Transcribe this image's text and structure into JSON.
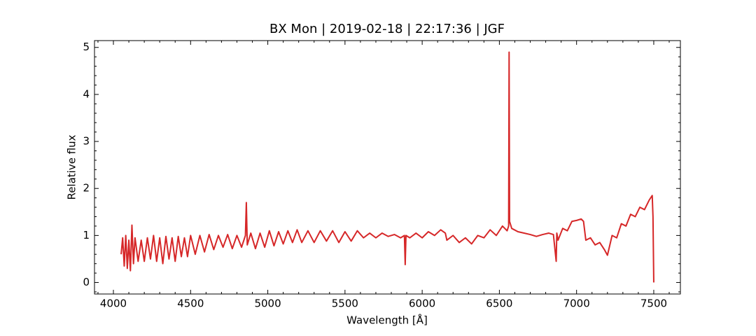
{
  "chart_data": {
    "type": "line",
    "title": "BX Mon | 2019-02-18 | 22:17:36 | JGF",
    "x_label": "Wavelength [Å]",
    "y_label": "Relative flux",
    "xlim": [
      3877.5,
      7672.5
    ],
    "ylim": [
      -0.245,
      5.145
    ],
    "xticks": [
      4000,
      4500,
      5000,
      5500,
      6000,
      6500,
      7000,
      7500
    ],
    "yticks": [
      0,
      1,
      2,
      3,
      4,
      5
    ],
    "xminorticks": [
      3900,
      4100,
      4200,
      4300,
      4400,
      4600,
      4700,
      4800,
      4900,
      5100,
      5200,
      5300,
      5400,
      5600,
      5700,
      5800,
      5900,
      6100,
      6200,
      6300,
      6400,
      6600,
      6700,
      6800,
      6900,
      7100,
      7200,
      7300,
      7400,
      7600
    ],
    "yminorticks": [
      -0.2,
      0.2,
      0.4,
      0.6,
      0.8,
      1.2,
      1.4,
      1.6,
      1.8,
      2.2,
      2.4,
      2.6,
      2.8,
      3.2,
      3.4,
      3.6,
      3.8,
      4.2,
      4.4,
      4.6,
      4.8
    ],
    "grid": false,
    "x": [
      4050,
      4060,
      4070,
      4080,
      4090,
      4100,
      4110,
      4120,
      4130,
      4140,
      4160,
      4180,
      4200,
      4220,
      4240,
      4260,
      4280,
      4300,
      4320,
      4340,
      4360,
      4380,
      4400,
      4420,
      4440,
      4460,
      4480,
      4500,
      4530,
      4560,
      4590,
      4620,
      4650,
      4680,
      4710,
      4740,
      4770,
      4800,
      4830,
      4855,
      4861,
      4867,
      4890,
      4920,
      4950,
      4980,
      5010,
      5040,
      5070,
      5100,
      5130,
      5160,
      5190,
      5220,
      5260,
      5300,
      5340,
      5380,
      5420,
      5460,
      5500,
      5540,
      5580,
      5620,
      5660,
      5700,
      5740,
      5780,
      5820,
      5860,
      5885,
      5890,
      5895,
      5920,
      5960,
      6000,
      6040,
      6080,
      6120,
      6150,
      6160,
      6200,
      6240,
      6280,
      6320,
      6360,
      6400,
      6440,
      6480,
      6520,
      6550,
      6560,
      6563,
      6566,
      6580,
      6620,
      6660,
      6700,
      6740,
      6780,
      6820,
      6850,
      6868,
      6872,
      6880,
      6910,
      6940,
      6970,
      7000,
      7030,
      7045,
      7060,
      7090,
      7120,
      7150,
      7180,
      7200,
      7230,
      7260,
      7290,
      7320,
      7350,
      7380,
      7410,
      7440,
      7470,
      7490,
      7495,
      7500
    ],
    "series": [
      {
        "color": "#d62728",
        "values": [
          0.6,
          0.95,
          0.35,
          1.0,
          0.3,
          0.9,
          0.25,
          1.22,
          0.4,
          0.95,
          0.45,
          0.9,
          0.45,
          0.95,
          0.5,
          1.0,
          0.45,
          0.95,
          0.4,
          0.98,
          0.5,
          0.95,
          0.45,
          0.98,
          0.55,
          0.95,
          0.55,
          1.0,
          0.6,
          1.0,
          0.65,
          1.02,
          0.7,
          1.0,
          0.75,
          1.02,
          0.72,
          1.0,
          0.75,
          1.0,
          1.7,
          0.8,
          1.05,
          0.72,
          1.05,
          0.75,
          1.1,
          0.78,
          1.08,
          0.82,
          1.1,
          0.85,
          1.12,
          0.85,
          1.1,
          0.85,
          1.1,
          0.88,
          1.1,
          0.85,
          1.08,
          0.88,
          1.1,
          0.95,
          1.05,
          0.95,
          1.05,
          0.98,
          1.02,
          0.95,
          1.0,
          0.38,
          1.0,
          0.95,
          1.05,
          0.95,
          1.08,
          1.0,
          1.12,
          1.05,
          0.9,
          1.0,
          0.85,
          0.95,
          0.82,
          1.0,
          0.95,
          1.12,
          1.0,
          1.2,
          1.1,
          1.2,
          4.9,
          1.3,
          1.15,
          1.08,
          1.05,
          1.02,
          0.98,
          1.02,
          1.05,
          1.02,
          0.45,
          1.05,
          0.9,
          1.15,
          1.1,
          1.3,
          1.32,
          1.35,
          1.3,
          0.9,
          0.95,
          0.8,
          0.85,
          0.7,
          0.58,
          1.0,
          0.95,
          1.25,
          1.2,
          1.45,
          1.4,
          1.6,
          1.55,
          1.75,
          1.85,
          1.4,
          0
        ]
      }
    ]
  }
}
